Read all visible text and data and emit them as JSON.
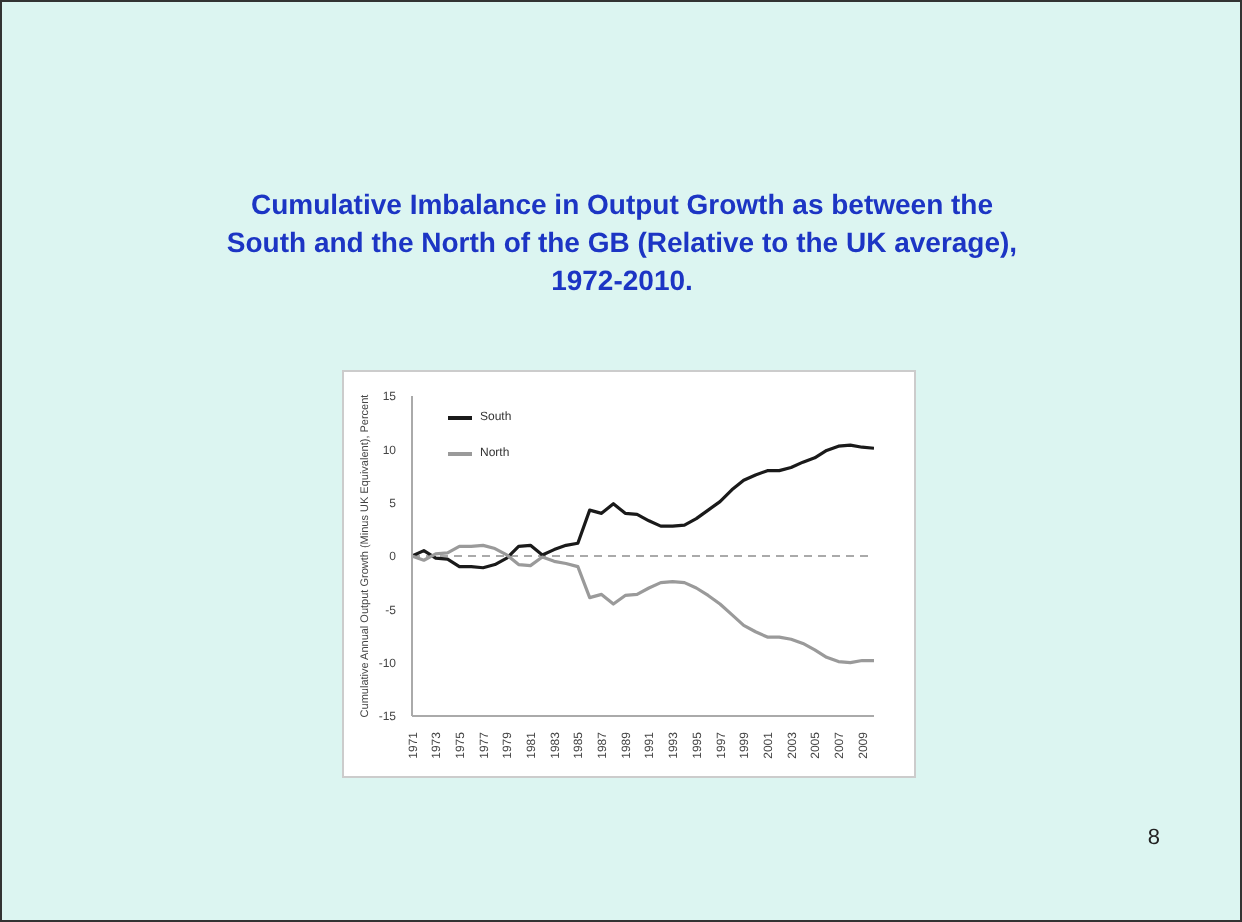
{
  "chart_data": {
    "type": "line",
    "title": "Cumulative Imbalance in Output Growth as between the South and the North of the GB (Relative to the UK average), 1972-2010.",
    "ylabel": "Cumulative Annual Output Growth (Minus UK Equivalent), Percent",
    "annotations": [
      "8"
    ],
    "x": [
      1971,
      1972,
      1973,
      1974,
      1975,
      1976,
      1977,
      1978,
      1979,
      1980,
      1981,
      1982,
      1983,
      1984,
      1985,
      1986,
      1987,
      1988,
      1989,
      1990,
      1991,
      1992,
      1993,
      1994,
      1995,
      1996,
      1997,
      1998,
      1999,
      2000,
      2001,
      2002,
      2003,
      2004,
      2005,
      2006,
      2007,
      2008,
      2009,
      2010
    ],
    "series": [
      {
        "name": "South",
        "color": "#1a1a1a",
        "values": [
          0,
          0.5,
          -0.2,
          -0.3,
          -1.0,
          -1.0,
          -1.1,
          -0.8,
          -0.2,
          0.9,
          1.0,
          0.1,
          0.6,
          1.0,
          1.2,
          4.3,
          4.0,
          4.9,
          4.0,
          3.9,
          3.3,
          2.8,
          2.8,
          2.9,
          3.5,
          4.3,
          5.1,
          6.2,
          7.1,
          7.6,
          8.0,
          8.0,
          8.3,
          8.8,
          9.2,
          9.9,
          10.3,
          10.4,
          10.2,
          10.1
        ]
      },
      {
        "name": "North",
        "color": "#9a9a9a",
        "values": [
          0,
          -0.4,
          0.2,
          0.3,
          0.9,
          0.9,
          1.0,
          0.7,
          0.1,
          -0.8,
          -0.9,
          -0.1,
          -0.5,
          -0.7,
          -1.0,
          -3.9,
          -3.6,
          -4.5,
          -3.7,
          -3.6,
          -3.0,
          -2.5,
          -2.4,
          -2.5,
          -3.0,
          -3.7,
          -4.5,
          -5.5,
          -6.5,
          -7.1,
          -7.6,
          -7.6,
          -7.8,
          -8.2,
          -8.8,
          -9.5,
          -9.9,
          -10.0,
          -9.8,
          -9.8
        ]
      }
    ],
    "xlim": [
      1971,
      2010
    ],
    "xticks": [
      1971,
      1973,
      1975,
      1977,
      1979,
      1981,
      1983,
      1985,
      1987,
      1989,
      1991,
      1993,
      1995,
      1997,
      1999,
      2001,
      2003,
      2005,
      2007,
      2009
    ],
    "ylim": [
      -15,
      15
    ],
    "yticks": [
      -15,
      -10,
      -5,
      0,
      5,
      10,
      15
    ],
    "ref_lines": [
      {
        "axis": "y",
        "value": 0,
        "color": "#aaaaaa",
        "line_style": "dashed"
      }
    ],
    "grid": false,
    "legend": "top left",
    "marker": "none",
    "line_style": "solid"
  }
}
